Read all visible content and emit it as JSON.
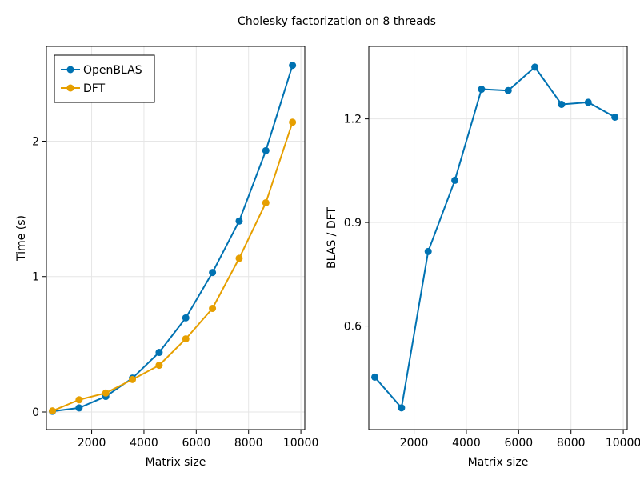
{
  "figure": {
    "title": "Cholesky factorization on 8 threads"
  },
  "chart_data": [
    {
      "type": "line",
      "title": "",
      "xlabel": "Matrix size",
      "ylabel": "Time (s)",
      "x": [
        500,
        1520,
        2540,
        3560,
        4580,
        5600,
        6620,
        7640,
        8660,
        9680
      ],
      "series": [
        {
          "name": "OpenBLAS",
          "color": "#0072b2",
          "values": [
            0.005,
            0.03,
            0.115,
            0.25,
            0.44,
            0.695,
            1.03,
            1.41,
            1.93,
            2.56
          ]
        },
        {
          "name": "DFT",
          "color": "#e69f00",
          "values": [
            0.008,
            0.09,
            0.14,
            0.24,
            0.345,
            0.54,
            0.765,
            1.135,
            1.545,
            2.14
          ]
        }
      ],
      "xlim": [
        270,
        10150
      ],
      "ylim": [
        -0.13,
        2.7
      ],
      "xticks": [
        2000,
        4000,
        6000,
        8000,
        10000
      ],
      "yticks": [
        0,
        1,
        2
      ],
      "grid": true,
      "legend_position": "top-left"
    },
    {
      "type": "line",
      "title": "",
      "xlabel": "Matrix size",
      "ylabel": "BLAS / DFT",
      "x": [
        500,
        1520,
        2540,
        3560,
        4580,
        5600,
        6620,
        7640,
        8660,
        9680
      ],
      "series": [
        {
          "name": "",
          "color": "#0072b2",
          "values": [
            0.452,
            0.363,
            0.816,
            1.022,
            1.286,
            1.282,
            1.35,
            1.242,
            1.248,
            1.205
          ]
        }
      ],
      "xlim": [
        270,
        10150
      ],
      "ylim": [
        0.3,
        1.41
      ],
      "xticks": [
        2000,
        4000,
        6000,
        8000,
        10000
      ],
      "yticks": [
        0.6,
        0.9,
        1.2
      ],
      "grid": true,
      "legend_position": "none"
    }
  ]
}
